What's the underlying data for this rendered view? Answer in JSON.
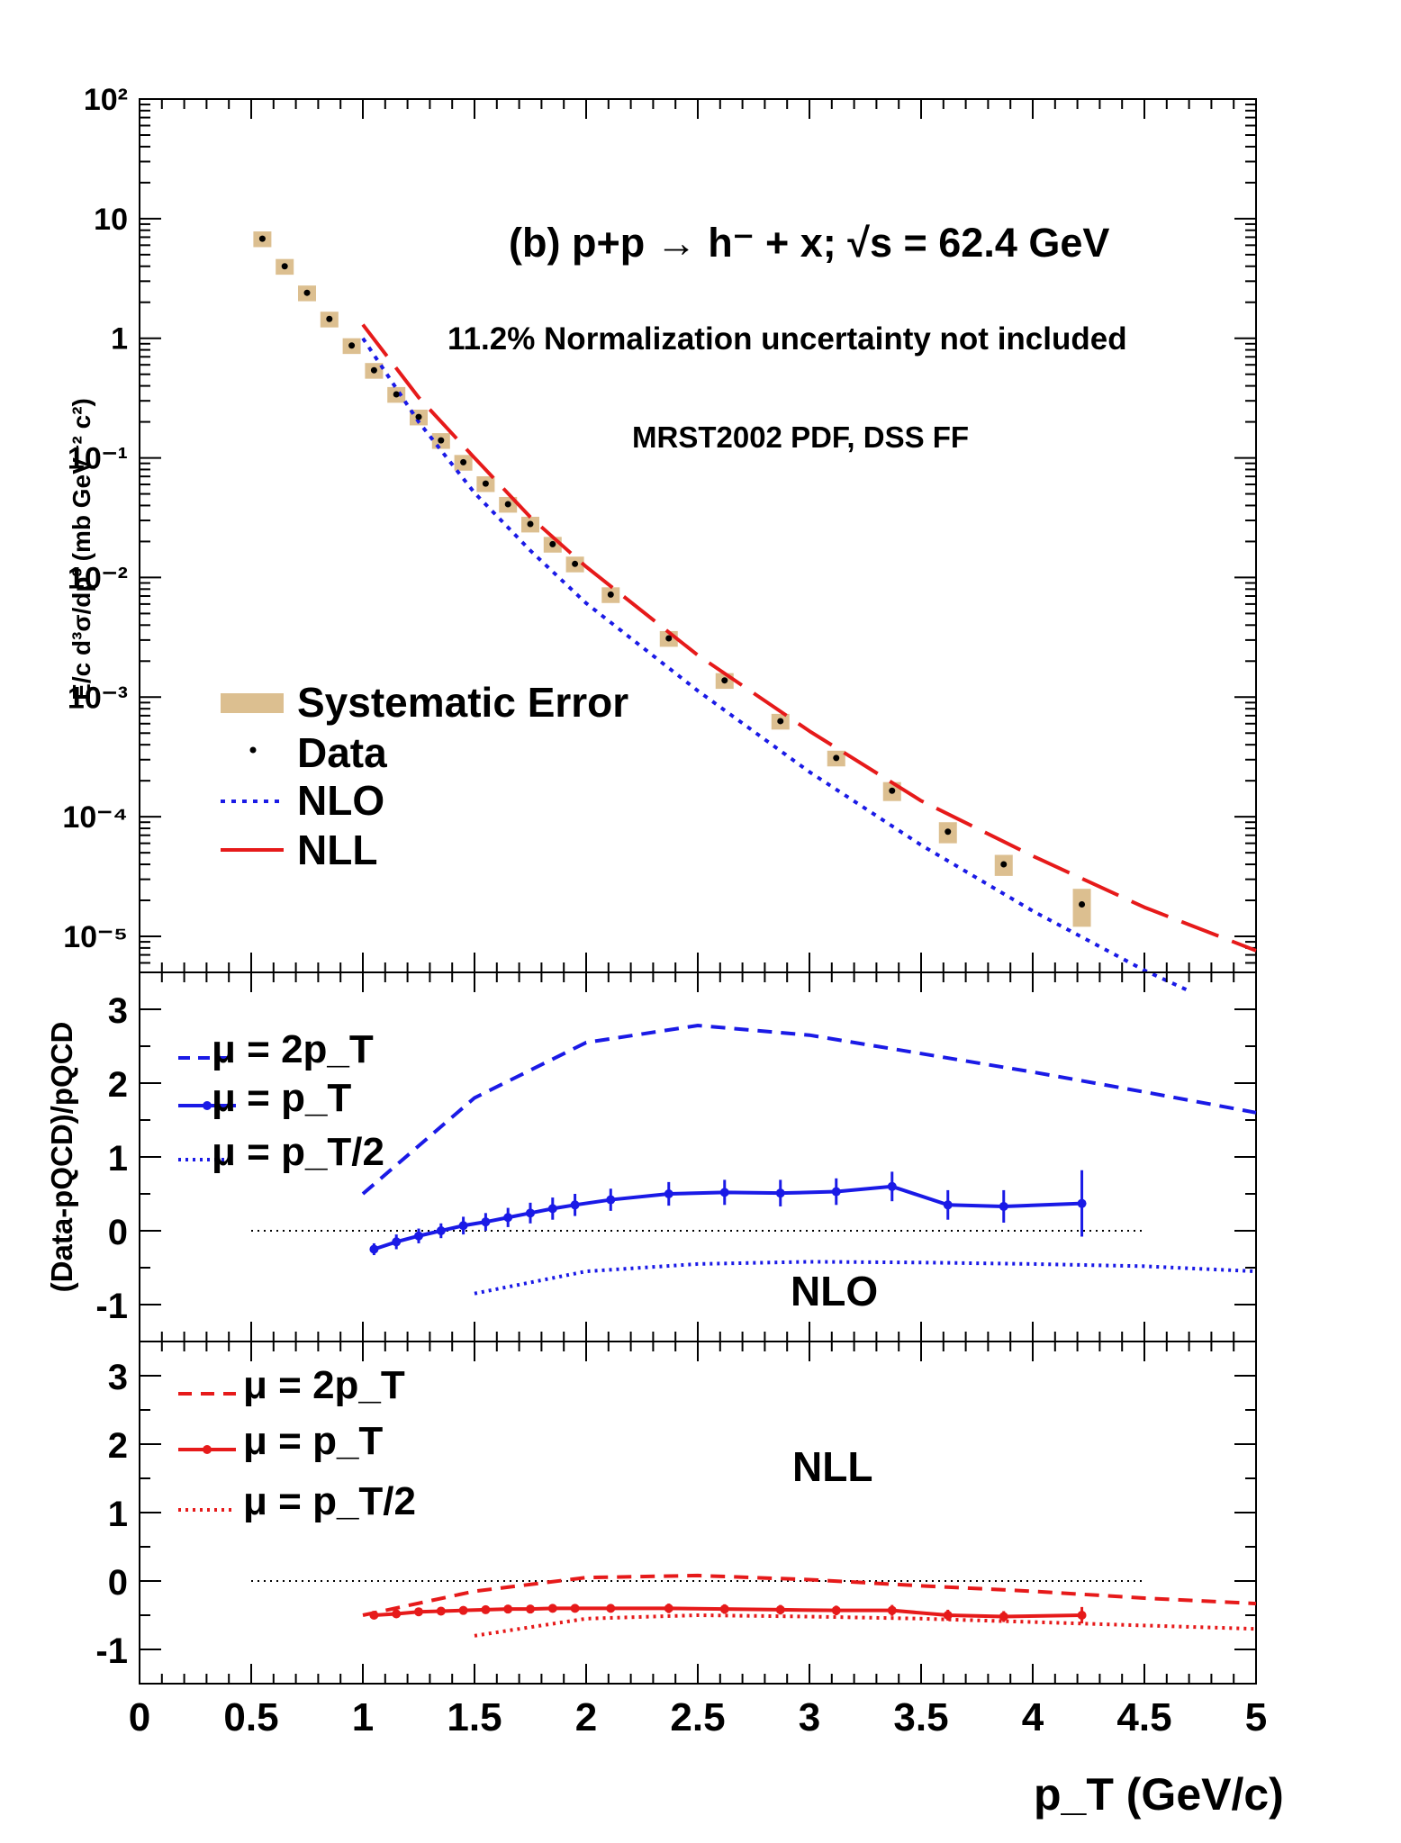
{
  "chart_data": [
    {
      "type": "scatter",
      "title": "(b) p+p → h⁻ + x; √s = 62.4 GeV",
      "annotations": [
        "11.2% Normalization uncertainty not included",
        "MRST2002 PDF, DSS FF"
      ],
      "ylabel": "E/c d³σ/dp³ (mb GeV⁻² c²)",
      "xlabel": "p_T (GeV/c)",
      "xlim": [
        0,
        5
      ],
      "ylim": [
        5e-06,
        100
      ],
      "yscale": "log",
      "ytick_labels": [
        "10⁻⁵",
        "10⁻⁴",
        "10⁻³",
        "10⁻²",
        "10⁻¹",
        "1",
        "10",
        "10²"
      ],
      "legend_position": "bottom-left",
      "series": [
        {
          "name": "Data",
          "kind": "points",
          "color": "#000000",
          "x": [
            0.55,
            0.65,
            0.75,
            0.85,
            0.95,
            1.05,
            1.15,
            1.25,
            1.35,
            1.45,
            1.55,
            1.65,
            1.75,
            1.85,
            1.95,
            2.11,
            2.37,
            2.62,
            2.87,
            3.12,
            3.37,
            3.62,
            3.87,
            4.22
          ],
          "y": [
            6.8,
            4.0,
            2.4,
            1.45,
            0.87,
            0.54,
            0.34,
            0.22,
            0.14,
            0.092,
            0.061,
            0.041,
            0.028,
            0.019,
            0.013,
            0.0072,
            0.0031,
            0.00138,
            0.00063,
            0.00031,
            0.000165,
            7.5e-05,
            4e-05,
            1.85e-05
          ],
          "sys_error_rel": [
            0.15,
            0.15,
            0.15,
            0.15,
            0.15,
            0.15,
            0.15,
            0.15,
            0.15,
            0.15,
            0.15,
            0.15,
            0.15,
            0.15,
            0.15,
            0.15,
            0.15,
            0.15,
            0.15,
            0.15,
            0.18,
            0.2,
            0.2,
            0.35
          ]
        },
        {
          "name": "Systematic Error",
          "kind": "band",
          "color": "#dcbf90"
        },
        {
          "name": "NLO",
          "kind": "line",
          "style": "dotted",
          "color": "#1a1ae6",
          "x": [
            1.0,
            1.25,
            1.5,
            1.75,
            2.0,
            2.5,
            3.0,
            3.5,
            4.0,
            4.5,
            4.7
          ],
          "y": [
            1.0,
            0.2,
            0.051,
            0.0168,
            0.0061,
            0.00113,
            0.000237,
            5.8e-05,
            1.63e-05,
            5.2e-06,
            3.5e-06
          ]
        },
        {
          "name": "NLL",
          "kind": "line",
          "style": "dashed",
          "color": "#e61a1a",
          "x": [
            1.0,
            1.25,
            1.5,
            1.75,
            2.0,
            2.5,
            3.0,
            3.5,
            4.0,
            4.5,
            5.0
          ],
          "y": [
            1.3,
            0.32,
            0.1,
            0.032,
            0.0123,
            0.00224,
            0.00052,
            0.000136,
            4.7e-05,
            1.75e-05,
            7.6e-06
          ]
        }
      ]
    },
    {
      "type": "line",
      "ylabel": "(Data-pQCD)/pQCD",
      "xlim": [
        0,
        5
      ],
      "ylim": [
        -1.5,
        3.5
      ],
      "yticks": [
        -1,
        0,
        1,
        2,
        3
      ],
      "panel_label": "NLO",
      "legend_position": "top-left",
      "reference_line": {
        "x": [
          0.5,
          4.5
        ],
        "y": 0
      },
      "series": [
        {
          "name": "μ = 2p_T",
          "style": "dashed",
          "color": "#1a1ae6",
          "x": [
            1.0,
            1.5,
            2.0,
            2.5,
            3.0,
            3.5,
            4.0,
            4.5,
            5.0
          ],
          "y": [
            0.5,
            1.8,
            2.55,
            2.78,
            2.65,
            2.4,
            2.15,
            1.88,
            1.6
          ]
        },
        {
          "name": "μ = p_T",
          "style": "solid-markers",
          "color": "#1a1ae6",
          "x": [
            1.05,
            1.15,
            1.25,
            1.35,
            1.45,
            1.55,
            1.65,
            1.75,
            1.85,
            1.95,
            2.11,
            2.37,
            2.62,
            2.87,
            3.12,
            3.37,
            3.62,
            3.87,
            4.22
          ],
          "y": [
            -0.25,
            -0.15,
            -0.07,
            0.0,
            0.07,
            0.12,
            0.18,
            0.24,
            0.3,
            0.35,
            0.42,
            0.5,
            0.52,
            0.51,
            0.53,
            0.6,
            0.35,
            0.33,
            0.37
          ],
          "err": [
            0.08,
            0.1,
            0.1,
            0.1,
            0.12,
            0.12,
            0.13,
            0.14,
            0.15,
            0.15,
            0.15,
            0.16,
            0.17,
            0.18,
            0.18,
            0.2,
            0.2,
            0.22,
            0.45
          ]
        },
        {
          "name": "μ = p_T/2",
          "style": "dotted",
          "color": "#1a1ae6",
          "x": [
            1.5,
            2.0,
            2.5,
            3.0,
            3.5,
            4.0,
            4.5,
            5.0
          ],
          "y": [
            -0.85,
            -0.55,
            -0.45,
            -0.42,
            -0.43,
            -0.45,
            -0.48,
            -0.55
          ]
        }
      ]
    },
    {
      "type": "line",
      "xlabel": "p_T (GeV/c)",
      "xlim": [
        0,
        5
      ],
      "ylim": [
        -1.5,
        3.5
      ],
      "yticks": [
        -1,
        0,
        1,
        2,
        3
      ],
      "xticks": [
        0,
        0.5,
        1,
        1.5,
        2,
        2.5,
        3,
        3.5,
        4,
        4.5,
        5
      ],
      "panel_label": "NLL",
      "legend_position": "top-left",
      "reference_line": {
        "x": [
          0.5,
          4.5
        ],
        "y": 0
      },
      "series": [
        {
          "name": "μ = 2p_T",
          "style": "dashed",
          "color": "#e61a1a",
          "x": [
            1.0,
            1.5,
            2.0,
            2.5,
            3.0,
            3.5,
            4.0,
            4.5,
            5.0
          ],
          "y": [
            -0.5,
            -0.15,
            0.05,
            0.08,
            0.02,
            -0.07,
            -0.15,
            -0.25,
            -0.33
          ]
        },
        {
          "name": "μ = p_T",
          "style": "solid-markers",
          "color": "#e61a1a",
          "x": [
            1.05,
            1.15,
            1.25,
            1.35,
            1.45,
            1.55,
            1.65,
            1.75,
            1.85,
            1.95,
            2.11,
            2.37,
            2.62,
            2.87,
            3.12,
            3.37,
            3.62,
            3.87,
            4.22
          ],
          "y": [
            -0.5,
            -0.48,
            -0.45,
            -0.44,
            -0.43,
            -0.42,
            -0.41,
            -0.41,
            -0.4,
            -0.4,
            -0.4,
            -0.4,
            -0.41,
            -0.42,
            -0.43,
            -0.43,
            -0.5,
            -0.52,
            -0.5
          ],
          "err": [
            0.05,
            0.05,
            0.05,
            0.05,
            0.06,
            0.06,
            0.06,
            0.06,
            0.06,
            0.06,
            0.06,
            0.07,
            0.07,
            0.07,
            0.07,
            0.08,
            0.08,
            0.08,
            0.12
          ]
        },
        {
          "name": "μ = p_T/2",
          "style": "dotted",
          "color": "#e61a1a",
          "x": [
            1.5,
            2.0,
            2.5,
            3.0,
            3.5,
            4.0,
            4.5,
            5.0
          ],
          "y": [
            -0.8,
            -0.55,
            -0.5,
            -0.52,
            -0.55,
            -0.6,
            -0.65,
            -0.7
          ]
        }
      ]
    }
  ]
}
